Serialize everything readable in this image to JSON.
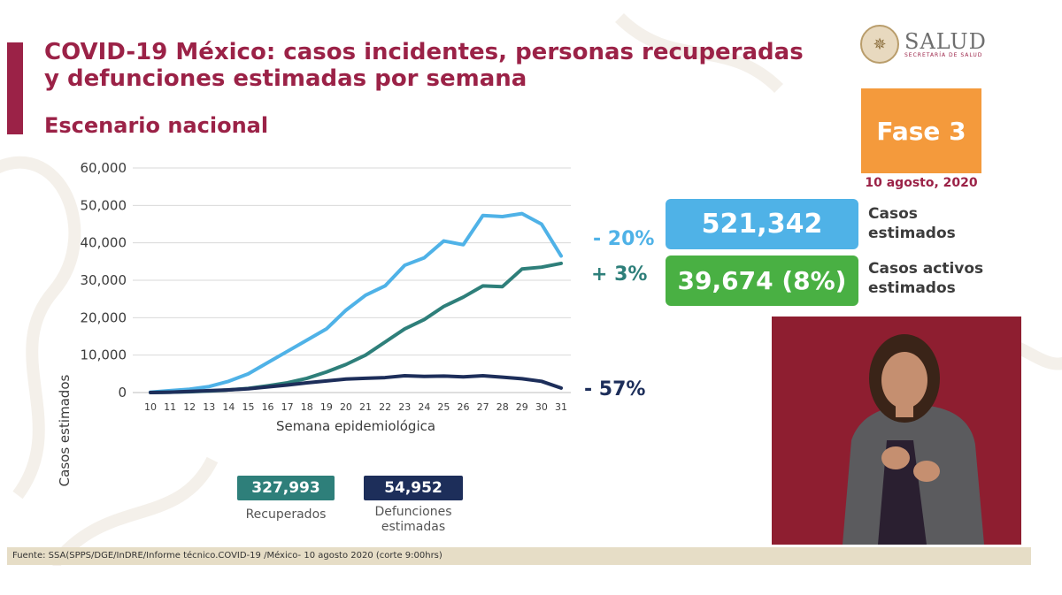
{
  "header": {
    "title": "COVID-19 México: casos incidentes, personas recuperadas y defunciones estimadas por semana",
    "subtitle": "Escenario nacional"
  },
  "logo": {
    "name": "SALUD",
    "sub": "SECRETARÍA DE SALUD"
  },
  "phase": {
    "label": "Fase 3",
    "date": "10 agosto, 2020"
  },
  "kpis": {
    "cases_value": "521,342",
    "cases_label_1": "Casos",
    "cases_label_2": "estimados",
    "active_value": "39,674 (8%)",
    "active_label_1": "Casos activos",
    "active_label_2": "estimados"
  },
  "changes": {
    "cases": "- 20%",
    "recovered": "+ 3%",
    "deaths": "- 57%"
  },
  "badges": {
    "recovered_value": "327,993",
    "recovered_label": "Recuperados",
    "deaths_value": "54,952",
    "deaths_label_1": "Defunciones",
    "deaths_label_2": "estimadas"
  },
  "footer": {
    "source": "Fuente: SSA(SPPS/DGE/InDRE/Informe técnico.COVID-19 /México- 10 agosto 2020 (corte 9:00hrs)"
  },
  "colors": {
    "brand": "#9b2247",
    "cases": "#4fb2e7",
    "recovered": "#2e7f7a",
    "deaths": "#1d2e5a",
    "phase": "#f49a3c",
    "active": "#49b043"
  },
  "chart_data": {
    "type": "line",
    "xlabel": "Semana epidemiológica",
    "ylabel": "Casos estimados",
    "x": [
      10,
      11,
      12,
      13,
      14,
      15,
      16,
      17,
      18,
      19,
      20,
      21,
      22,
      23,
      24,
      25,
      26,
      27,
      28,
      29,
      30,
      31
    ],
    "ylim": [
      0,
      60000
    ],
    "yticks": [
      0,
      10000,
      20000,
      30000,
      40000,
      50000,
      60000
    ],
    "ytick_labels": [
      "0",
      "10,000",
      "20,000",
      "30,000",
      "40,000",
      "50,000",
      "60,000"
    ],
    "grid": true,
    "series": [
      {
        "key": "cases",
        "color": "#4fb2e7",
        "values": [
          100,
          500,
          900,
          1600,
          3000,
          5000,
          8000,
          11000,
          14000,
          17000,
          22000,
          26000,
          28500,
          34000,
          36000,
          40500,
          39500,
          47300,
          47000,
          47800,
          45000,
          36500
        ]
      },
      {
        "key": "recovered",
        "color": "#2e7f7a",
        "values": [
          0,
          100,
          200,
          400,
          700,
          1100,
          1800,
          2600,
          3800,
          5500,
          7500,
          10000,
          13500,
          17000,
          19500,
          23000,
          25500,
          28500,
          28300,
          33000,
          33500,
          34500
        ]
      },
      {
        "key": "deaths",
        "color": "#1d2e5a",
        "values": [
          0,
          100,
          300,
          500,
          700,
          1000,
          1500,
          2000,
          2600,
          3100,
          3600,
          3800,
          4000,
          4500,
          4300,
          4400,
          4200,
          4500,
          4100,
          3700,
          3000,
          1200
        ]
      }
    ]
  }
}
